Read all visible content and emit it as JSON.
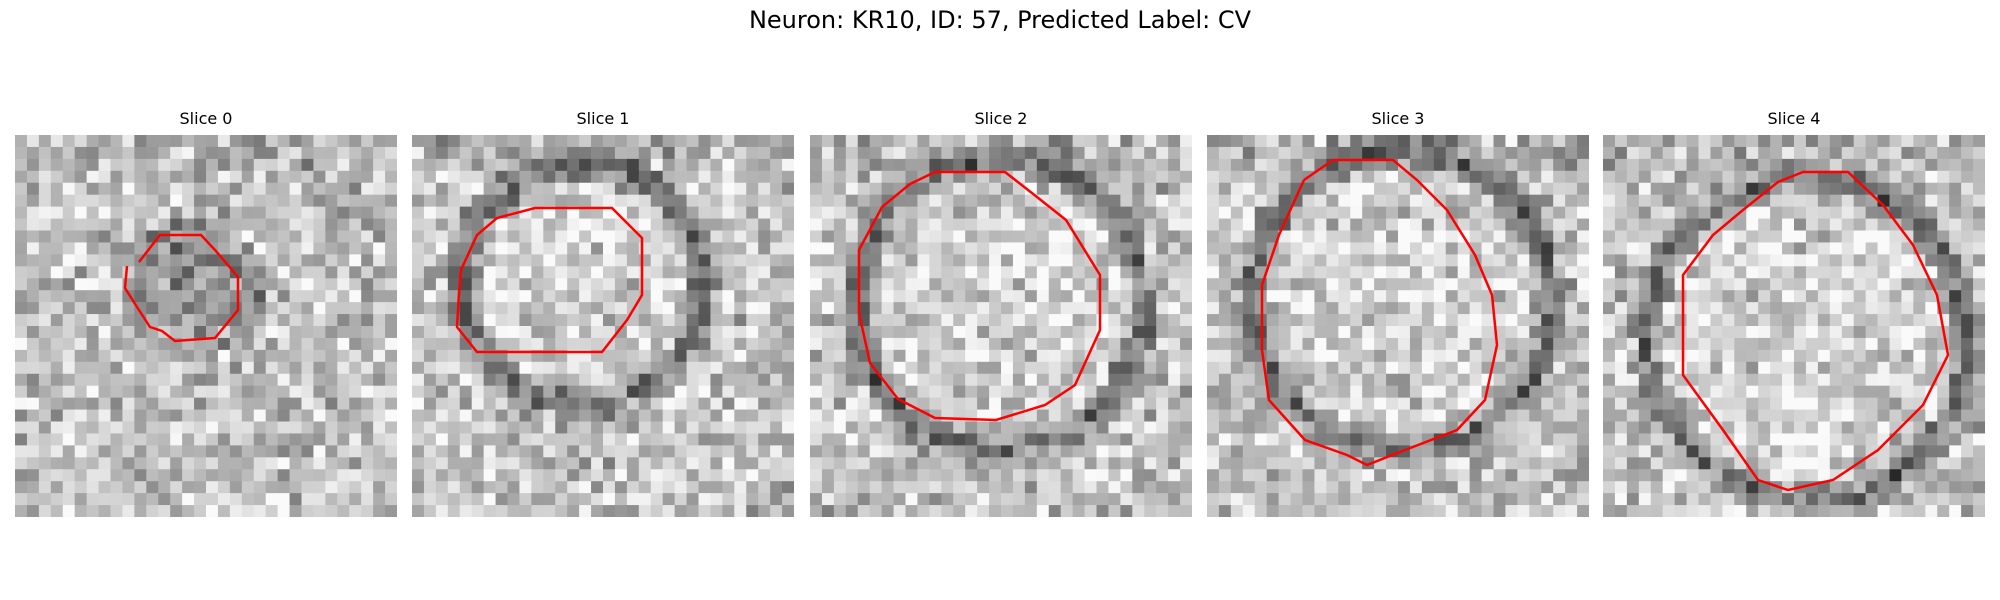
{
  "figure": {
    "title": "Neuron: KR10, ID: 57, Predicted Label: CV"
  },
  "colors": {
    "contour": "#ff0000",
    "background": "#ffffff"
  },
  "slices": [
    {
      "title": "Slice 0"
    },
    {
      "title": "Slice 1"
    },
    {
      "title": "Slice 2"
    },
    {
      "title": "Slice 3"
    },
    {
      "title": "Slice 4"
    }
  ]
}
